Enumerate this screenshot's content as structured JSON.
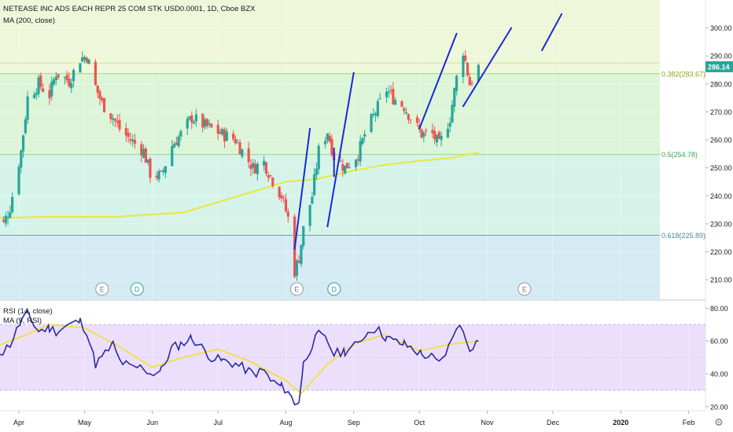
{
  "header": {
    "title": "NETEASE INC ADS EACH REPR 25 COM STK USD0.0001, 1D, Cboe BZX",
    "ma_label": "MA (200, close)"
  },
  "rsi_header": {
    "rsi_label": "RSI (14, close)",
    "ma_label": "MA (9, RSI)"
  },
  "colors": {
    "candle_up": "#26a69a",
    "candle_down": "#ef5350",
    "ma200": "#e8e84a",
    "rsi_line": "#2a2aa8",
    "rsi_ma": "#f0e040",
    "trendline": "#1b28d8",
    "fib_line": "#8fd98f",
    "fib_618_line": "#4db3a0",
    "rsi_band": "#ecdffb",
    "last_price_bg": "#26a69a"
  },
  "chart_data": [
    {
      "type": "candlestick",
      "symbol": "NETEASE INC ADS EACH REPR 25 COM STK USD0.0001",
      "interval": "1D",
      "exchange": "Cboe BZX",
      "x_tick_labels": [
        "Apr",
        "May",
        "Jun",
        "Jul",
        "Aug",
        "Sep",
        "Oct",
        "Nov",
        "Dec",
        "2020",
        "Feb"
      ],
      "y_tick_labels": [
        "210.00",
        "220.00",
        "230.00",
        "240.00",
        "250.00",
        "260.00",
        "270.00",
        "280.00",
        "290.00",
        "300.00"
      ],
      "ylim": [
        203,
        310
      ],
      "last_price": "286.14",
      "close_series_approx": {
        "dates": [
          "2019-03-20",
          "2019-03-25",
          "2019-03-28",
          "2019-04-02",
          "2019-04-05",
          "2019-04-10",
          "2019-04-15",
          "2019-04-18",
          "2019-04-24",
          "2019-04-29",
          "2019-05-02",
          "2019-05-06",
          "2019-05-09",
          "2019-05-14",
          "2019-05-17",
          "2019-05-22",
          "2019-05-28",
          "2019-05-31",
          "2019-06-05",
          "2019-06-10",
          "2019-06-14",
          "2019-06-19",
          "2019-06-25",
          "2019-06-28",
          "2019-07-03",
          "2019-07-09",
          "2019-07-12",
          "2019-07-17",
          "2019-07-22",
          "2019-07-25",
          "2019-07-30",
          "2019-08-02",
          "2019-08-05",
          "2019-08-07",
          "2019-08-09",
          "2019-08-13",
          "2019-08-16",
          "2019-08-20",
          "2019-08-23",
          "2019-08-28",
          "2019-09-03",
          "2019-09-06",
          "2019-09-11",
          "2019-09-16",
          "2019-09-19",
          "2019-09-24",
          "2019-09-27",
          "2019-10-02",
          "2019-10-07",
          "2019-10-10",
          "2019-10-15",
          "2019-10-18",
          "2019-10-21",
          "2019-10-24",
          "2019-10-28"
        ],
        "values": [
          233,
          230,
          236,
          256,
          275,
          280,
          276,
          284,
          281,
          289,
          290,
          279,
          273,
          268,
          264,
          260,
          256,
          248,
          247,
          258,
          262,
          268,
          265,
          264,
          262,
          260,
          256,
          250,
          252,
          247,
          240,
          232,
          213,
          218,
          228,
          240,
          256,
          263,
          254,
          250,
          255,
          262,
          270,
          278,
          275,
          272,
          268,
          262,
          262,
          258,
          268,
          282,
          292,
          280,
          286
        ]
      },
      "ma_series": [
        {
          "name": "MA (200, close)",
          "dates": [
            "2019-03-20",
            "2019-04-15",
            "2019-05-15",
            "2019-06-15",
            "2019-07-15",
            "2019-08-01",
            "2019-08-15",
            "2019-09-01",
            "2019-09-15",
            "2019-10-01",
            "2019-10-15",
            "2019-10-28"
          ],
          "values": [
            232,
            232.5,
            232.5,
            234,
            241,
            245,
            246,
            249,
            251,
            252.5,
            253.5,
            255.5
          ]
        }
      ],
      "fib_levels": [
        {
          "label": "0.382(283.67)",
          "value": 283.67
        },
        {
          "label": "0.5(254.78)",
          "value": 254.78
        },
        {
          "label": "0.618(225.89)",
          "value": 225.89
        }
      ],
      "extra_levels": [
        287.5
      ],
      "trendlines": [
        {
          "from": [
            "2019-08-05",
            221
          ],
          "to": [
            "2019-08-12",
            264
          ]
        },
        {
          "from": [
            "2019-08-20",
            229
          ],
          "to": [
            "2019-09-01",
            284
          ]
        },
        {
          "from": [
            "2019-08-23",
            247
          ],
          "to": [
            "2019-08-23",
            257
          ]
        },
        {
          "from": [
            "2019-10-01",
            264
          ],
          "to": [
            "2019-10-18",
            298
          ]
        },
        {
          "from": [
            "2019-10-21",
            272
          ],
          "to": [
            "2019-11-12",
            300
          ]
        },
        {
          "from": [
            "2019-11-26",
            292
          ],
          "to": [
            "2019-12-05",
            305
          ]
        }
      ],
      "event_markers": [
        {
          "label": "E",
          "date": "2019-05-09"
        },
        {
          "label": "D",
          "date": "2019-05-25"
        },
        {
          "label": "E",
          "date": "2019-08-06"
        },
        {
          "label": "D",
          "date": "2019-08-23"
        },
        {
          "label": "E",
          "date": "2019-11-18"
        }
      ]
    },
    {
      "type": "line",
      "title": "RSI (14, close)",
      "series": [
        {
          "name": "RSI (14, close)",
          "dates": [
            "2019-03-20",
            "2019-03-25",
            "2019-03-28",
            "2019-04-02",
            "2019-04-05",
            "2019-04-10",
            "2019-04-15",
            "2019-04-18",
            "2019-04-24",
            "2019-04-29",
            "2019-05-02",
            "2019-05-06",
            "2019-05-09",
            "2019-05-14",
            "2019-05-17",
            "2019-05-22",
            "2019-05-28",
            "2019-05-31",
            "2019-06-05",
            "2019-06-10",
            "2019-06-14",
            "2019-06-19",
            "2019-06-25",
            "2019-06-28",
            "2019-07-03",
            "2019-07-09",
            "2019-07-12",
            "2019-07-17",
            "2019-07-22",
            "2019-07-25",
            "2019-07-30",
            "2019-08-02",
            "2019-08-05",
            "2019-08-07",
            "2019-08-09",
            "2019-08-13",
            "2019-08-16",
            "2019-08-20",
            "2019-08-23",
            "2019-08-28",
            "2019-09-03",
            "2019-09-06",
            "2019-09-11",
            "2019-09-16",
            "2019-09-19",
            "2019-09-24",
            "2019-09-27",
            "2019-10-02",
            "2019-10-07",
            "2019-10-10",
            "2019-10-15",
            "2019-10-18",
            "2019-10-21",
            "2019-10-24",
            "2019-10-28"
          ],
          "values": [
            52,
            54,
            58,
            72,
            76,
            66,
            68,
            66,
            70,
            72,
            66,
            46,
            50,
            58,
            48,
            44,
            44,
            40,
            42,
            56,
            58,
            62,
            54,
            50,
            48,
            46,
            44,
            40,
            42,
            36,
            32,
            30,
            21,
            24,
            46,
            58,
            64,
            60,
            52,
            54,
            58,
            64,
            68,
            62,
            60,
            58,
            56,
            52,
            50,
            46,
            58,
            70,
            66,
            56,
            60
          ]
        },
        {
          "name": "MA (9, RSI)",
          "dates": [
            "2019-03-20",
            "2019-04-01",
            "2019-04-15",
            "2019-05-01",
            "2019-05-15",
            "2019-06-01",
            "2019-06-15",
            "2019-07-01",
            "2019-07-15",
            "2019-08-01",
            "2019-08-08",
            "2019-08-20",
            "2019-09-01",
            "2019-09-15",
            "2019-10-01",
            "2019-10-15",
            "2019-10-28"
          ],
          "values": [
            56,
            62,
            70,
            68,
            58,
            44,
            50,
            55,
            48,
            36,
            28,
            46,
            58,
            64,
            54,
            58,
            60
          ]
        }
      ],
      "y_tick_labels": [
        "20.00",
        "40.00",
        "60.00",
        "80.00"
      ],
      "ylim": [
        18,
        84
      ],
      "bands": [
        30,
        70
      ]
    }
  ]
}
